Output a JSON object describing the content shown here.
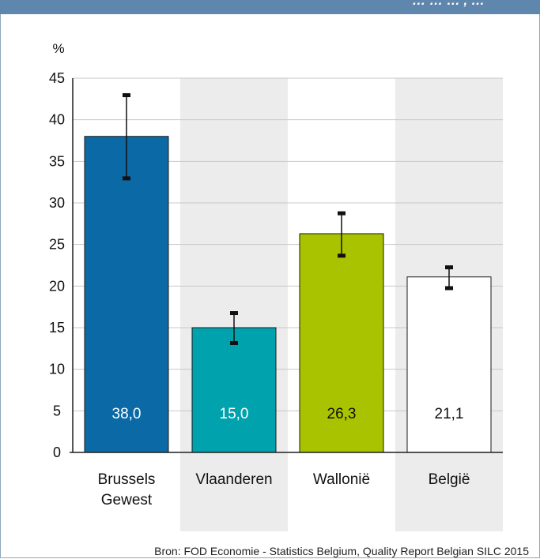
{
  "header": {
    "title_fragment": "…  …  … , …"
  },
  "source": "Bron: FOD Economie - Statistics Belgium, Quality Report Belgian SILC 2015",
  "colors": {
    "header": "#5f86ad",
    "band": "#ececec",
    "grid": "#c8c8c8",
    "axis": "#1f1f1f"
  },
  "chart_data": {
    "type": "bar",
    "ylabel": "%",
    "xlabel": "",
    "ylim": [
      0,
      45
    ],
    "yticks": [
      0,
      5,
      10,
      15,
      20,
      25,
      30,
      35,
      40,
      45
    ],
    "grid": true,
    "categories": [
      {
        "lines": [
          "Brussels",
          "Gewest"
        ]
      },
      {
        "lines": [
          "Vlaanderen"
        ]
      },
      {
        "lines": [
          "Wallonië"
        ]
      },
      {
        "lines": [
          "België"
        ]
      }
    ],
    "values": [
      38.0,
      15.0,
      26.3,
      21.1
    ],
    "value_labels": [
      "38,0",
      "15,0",
      "26,3",
      "21,1"
    ],
    "error_low": [
      33.0,
      13.2,
      23.7,
      19.8
    ],
    "error_high": [
      43.0,
      16.8,
      28.8,
      22.3
    ],
    "bar_colors": [
      "#0b6aa6",
      "#00a3ad",
      "#a9c300",
      "#ffffff"
    ],
    "label_colors": [
      "#ffffff",
      "#ffffff",
      "#111111",
      "#111111"
    ]
  }
}
